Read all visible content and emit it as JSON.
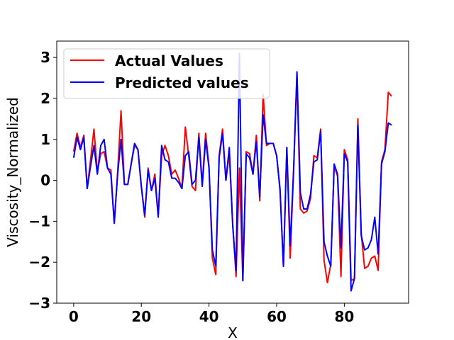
{
  "chart_data": {
    "type": "line",
    "title": "",
    "xlabel": "X",
    "ylabel": "Viscosity_Normalized",
    "xlim": [
      -5,
      99
    ],
    "ylim": [
      -3,
      3.4
    ],
    "xticks": [
      0,
      20,
      40,
      60,
      80
    ],
    "yticks": [
      -3,
      -2,
      -1,
      0,
      1,
      2,
      3
    ],
    "xtick_labels": [
      "0",
      "20",
      "40",
      "60",
      "80"
    ],
    "ytick_labels": [
      "−3",
      "−2",
      "−1",
      "0",
      "1",
      "2",
      "3"
    ],
    "grid": false,
    "legend": {
      "position": "top-left"
    },
    "series": [
      {
        "name": "Actual Values",
        "color": "#ff0000",
        "x": [
          0,
          1,
          2,
          3,
          4,
          5,
          6,
          7,
          8,
          9,
          10,
          11,
          12,
          13,
          14,
          15,
          16,
          17,
          18,
          19,
          20,
          21,
          22,
          23,
          24,
          25,
          26,
          27,
          28,
          29,
          30,
          31,
          32,
          33,
          34,
          35,
          36,
          37,
          38,
          39,
          40,
          41,
          42,
          43,
          44,
          45,
          46,
          47,
          48,
          49,
          50,
          51,
          52,
          53,
          54,
          55,
          56,
          57,
          58,
          59,
          60,
          61,
          62,
          63,
          64,
          65,
          66,
          67,
          68,
          69,
          70,
          71,
          72,
          73,
          74,
          75,
          76,
          77,
          78,
          79,
          80,
          81,
          82,
          83,
          84,
          85,
          86,
          87,
          88,
          89,
          90,
          91,
          92,
          93,
          94
        ],
        "y": [
          0.7,
          1.15,
          0.8,
          1.1,
          -0.2,
          0.5,
          1.25,
          0.2,
          0.65,
          0.7,
          0.3,
          0.25,
          -1.05,
          0.2,
          1.7,
          -0.1,
          -0.1,
          0.4,
          0.85,
          0.75,
          -0.15,
          -0.9,
          0.3,
          -0.25,
          0.15,
          -0.85,
          0.6,
          0.85,
          0.6,
          0.15,
          0.25,
          0.05,
          -0.2,
          1.3,
          0.6,
          -0.15,
          -0.25,
          1.15,
          -0.1,
          1.15,
          0.35,
          -1.9,
          -2.3,
          0.6,
          1.25,
          0.0,
          0.65,
          -1.05,
          -2.35,
          0.3,
          -2.45,
          0.7,
          0.65,
          0.15,
          1.1,
          -0.5,
          2.1,
          0.85,
          0.9,
          0.9,
          0.6,
          -0.2,
          -2.1,
          0.8,
          -1.9,
          0.2,
          2.6,
          -0.7,
          -0.8,
          -0.75,
          -0.45,
          0.6,
          0.55,
          1.25,
          -1.95,
          -2.5,
          -2.05,
          0.35,
          0.1,
          -2.35,
          0.75,
          0.5,
          -2.45,
          -2.4,
          1.5,
          -1.3,
          -2.15,
          -2.1,
          -1.9,
          -1.85,
          -2.2,
          0.45,
          0.75,
          2.15,
          2.05
        ]
      },
      {
        "name": "Predicted values",
        "color": "#0000ff",
        "x": [
          0,
          1,
          2,
          3,
          4,
          5,
          6,
          7,
          8,
          9,
          10,
          11,
          12,
          13,
          14,
          15,
          16,
          17,
          18,
          19,
          20,
          21,
          22,
          23,
          24,
          25,
          26,
          27,
          28,
          29,
          30,
          31,
          32,
          33,
          34,
          35,
          36,
          37,
          38,
          39,
          40,
          41,
          42,
          43,
          44,
          45,
          46,
          47,
          48,
          49,
          50,
          51,
          52,
          53,
          54,
          55,
          56,
          57,
          58,
          59,
          60,
          61,
          62,
          63,
          64,
          65,
          66,
          67,
          68,
          69,
          70,
          71,
          72,
          73,
          74,
          75,
          76,
          77,
          78,
          79,
          80,
          81,
          82,
          83,
          84,
          85,
          86,
          87,
          88,
          89,
          90,
          91,
          92,
          93,
          94
        ],
        "y": [
          0.55,
          1.05,
          0.75,
          1.05,
          -0.2,
          0.35,
          0.85,
          0.15,
          0.85,
          1.0,
          0.3,
          0.15,
          -1.05,
          0.15,
          1.0,
          -0.1,
          -0.1,
          0.4,
          0.9,
          0.75,
          -0.15,
          -0.85,
          0.25,
          -0.25,
          0.05,
          -0.9,
          0.85,
          0.5,
          0.45,
          0.05,
          0.05,
          -0.05,
          -0.2,
          0.6,
          0.7,
          -0.1,
          0.0,
          1.05,
          -0.15,
          1.0,
          0.3,
          -1.7,
          -2.1,
          0.55,
          1.15,
          0.0,
          0.8,
          -1.1,
          -2.2,
          3.1,
          -2.45,
          0.65,
          0.55,
          0.15,
          0.95,
          -0.4,
          1.6,
          0.9,
          0.9,
          0.9,
          0.6,
          -0.25,
          -2.1,
          0.8,
          -1.6,
          0.25,
          2.65,
          -0.3,
          -0.7,
          -0.7,
          -0.35,
          0.45,
          0.5,
          1.2,
          -1.5,
          -1.85,
          -2.1,
          0.4,
          0.15,
          -1.65,
          0.65,
          0.45,
          -2.7,
          -2.4,
          1.35,
          -1.35,
          -1.7,
          -1.65,
          -1.45,
          -0.9,
          -1.8,
          0.4,
          0.7,
          1.4,
          1.35
        ]
      }
    ]
  }
}
